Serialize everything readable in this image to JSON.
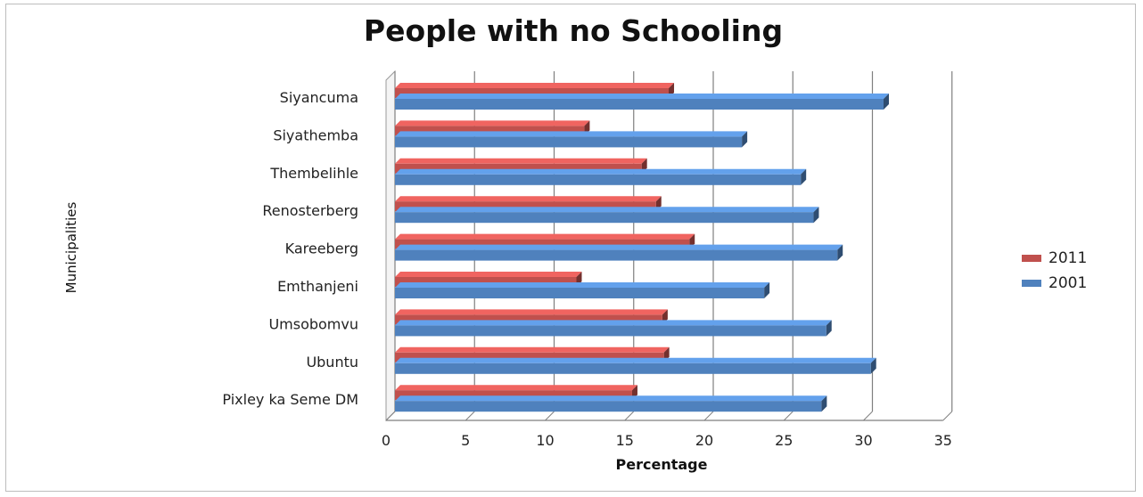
{
  "chart_data": {
    "type": "bar",
    "orientation": "horizontal",
    "style": "3d-clustered-bar",
    "title": "People with no Schooling",
    "xlabel": "Percentage",
    "ylabel": "Municipalities",
    "xlim": [
      0,
      35
    ],
    "xticks": [
      0,
      5,
      10,
      15,
      20,
      25,
      30,
      35
    ],
    "grid": true,
    "legend_position": "right",
    "categories": [
      "Siyancuma",
      "Siyathemba",
      "Thembelihle",
      "Renosterberg",
      "Kareeberg",
      "Emthanjeni",
      "Umsobomvu",
      "Ubuntu",
      "Pixley ka Seme DM"
    ],
    "series": [
      {
        "name": "2011",
        "color": "#c0504d",
        "values": [
          17.2,
          11.9,
          15.5,
          16.4,
          18.5,
          11.4,
          16.8,
          16.9,
          14.9
        ]
      },
      {
        "name": "2001",
        "color": "#4f81bd",
        "values": [
          30.7,
          21.8,
          25.5,
          26.3,
          27.8,
          23.2,
          27.1,
          29.9,
          26.8
        ]
      }
    ]
  }
}
